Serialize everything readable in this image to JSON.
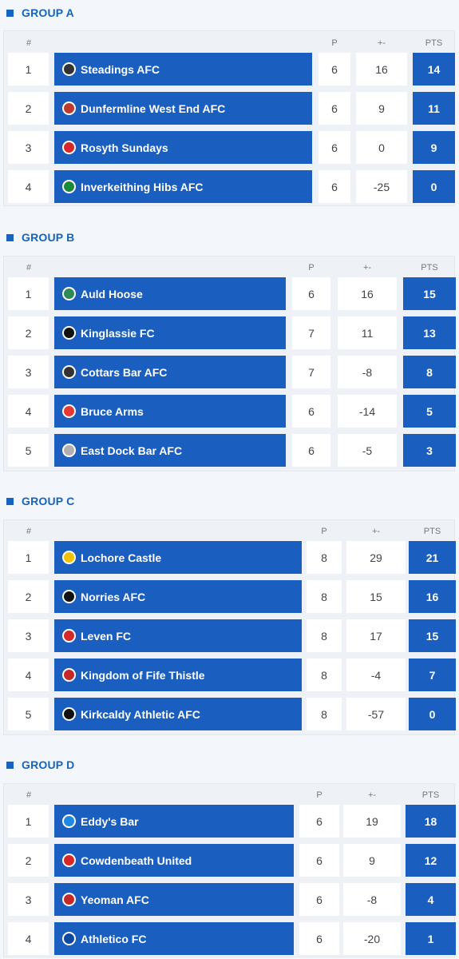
{
  "header_labels": {
    "rank": "#",
    "played": "P",
    "diff": "+-",
    "points": "PTS"
  },
  "colors": {
    "accent": "#1565c0",
    "team_bar": "#1a5fbf",
    "row_bg": "#ffffff",
    "panel_bg": "#eef2f7"
  },
  "groups": [
    {
      "title": "GROUP A",
      "rows": [
        {
          "pos": "1",
          "team": "Steadings AFC",
          "crest": "#333333",
          "p": "6",
          "diff": "16",
          "pts": "14"
        },
        {
          "pos": "2",
          "team": "Dunfermline West End AFC",
          "crest": "#c0392b",
          "p": "6",
          "diff": "9",
          "pts": "11"
        },
        {
          "pos": "3",
          "team": "Rosyth Sundays",
          "crest": "#d62828",
          "p": "6",
          "diff": "0",
          "pts": "9"
        },
        {
          "pos": "4",
          "team": "Inverkeithing Hibs AFC",
          "crest": "#1b8a3a",
          "p": "6",
          "diff": "-25",
          "pts": "0"
        }
      ]
    },
    {
      "title": "GROUP B",
      "rows": [
        {
          "pos": "1",
          "team": "Auld Hoose",
          "crest": "#2e8b57",
          "p": "6",
          "diff": "16",
          "pts": "15"
        },
        {
          "pos": "2",
          "team": "Kinglassie FC",
          "crest": "#111111",
          "p": "7",
          "diff": "11",
          "pts": "13"
        },
        {
          "pos": "3",
          "team": "Cottars Bar AFC",
          "crest": "#333333",
          "p": "7",
          "diff": "-8",
          "pts": "8"
        },
        {
          "pos": "4",
          "team": "Bruce Arms",
          "crest": "#e53935",
          "p": "6",
          "diff": "-14",
          "pts": "5"
        },
        {
          "pos": "5",
          "team": "East Dock Bar AFC",
          "crest": "#b0b0b0",
          "p": "6",
          "diff": "-5",
          "pts": "3"
        }
      ]
    },
    {
      "title": "GROUP C",
      "rows": [
        {
          "pos": "1",
          "team": "Lochore Castle",
          "crest": "#f2c200",
          "p": "8",
          "diff": "29",
          "pts": "21"
        },
        {
          "pos": "2",
          "team": "Norries AFC",
          "crest": "#111111",
          "p": "8",
          "diff": "15",
          "pts": "16"
        },
        {
          "pos": "3",
          "team": "Leven FC",
          "crest": "#d62828",
          "p": "8",
          "diff": "17",
          "pts": "15"
        },
        {
          "pos": "4",
          "team": "Kingdom of Fife Thistle",
          "crest": "#c62828",
          "p": "8",
          "diff": "-4",
          "pts": "7"
        },
        {
          "pos": "5",
          "team": "Kirkcaldy Athletic AFC",
          "crest": "#111111",
          "p": "8",
          "diff": "-57",
          "pts": "0"
        }
      ]
    },
    {
      "title": "GROUP D",
      "rows": [
        {
          "pos": "1",
          "team": "Eddy's Bar",
          "crest": "#1e88e5",
          "p": "6",
          "diff": "19",
          "pts": "18"
        },
        {
          "pos": "2",
          "team": "Cowdenbeath United",
          "crest": "#d62828",
          "p": "6",
          "diff": "9",
          "pts": "12"
        },
        {
          "pos": "3",
          "team": "Yeoman AFC",
          "crest": "#c62828",
          "p": "6",
          "diff": "-8",
          "pts": "4"
        },
        {
          "pos": "4",
          "team": "Athletico FC",
          "crest": "#0d47a1",
          "p": "6",
          "diff": "-20",
          "pts": "1"
        }
      ]
    }
  ]
}
